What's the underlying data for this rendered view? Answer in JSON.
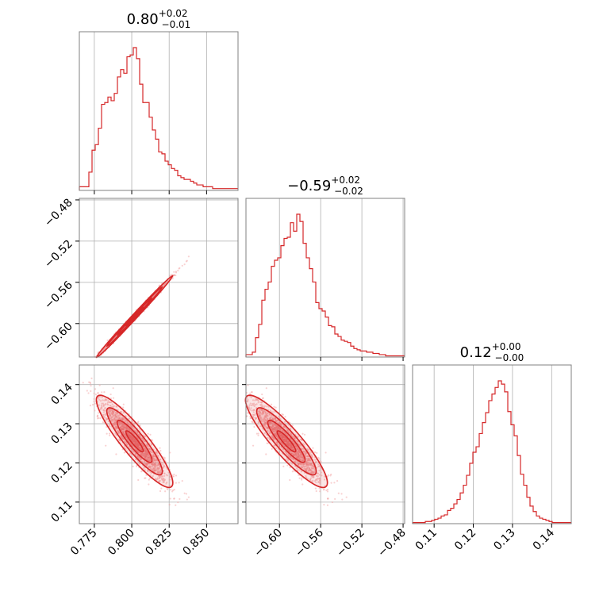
{
  "colors": {
    "primary": "#d62728",
    "grid": "#b0b0b0",
    "frame": "#808080",
    "light": "#f4a6a6"
  },
  "titles": [
    {
      "value": "0.80",
      "plus": "+0.02",
      "minus": "−0.01"
    },
    {
      "value": "−0.59",
      "plus": "+0.02",
      "minus": "−0.02"
    },
    {
      "value": "0.12",
      "plus": "+0.00",
      "minus": "−0.00"
    }
  ],
  "chart_data": {
    "type": "corner",
    "parameters": [
      {
        "index": 0,
        "range": [
          0.765,
          0.871
        ],
        "ticks": [
          0.775,
          0.8,
          0.825,
          0.85
        ],
        "tick_labels": [
          "0.775",
          "0.800",
          "0.825",
          "0.850"
        ]
      },
      {
        "index": 1,
        "range": [
          -0.6325,
          -0.4785
        ],
        "ticks": [
          -0.6,
          -0.56,
          -0.52,
          -0.48
        ],
        "tick_labels": [
          "−0.60",
          "−0.56",
          "−0.52",
          "−0.48"
        ]
      },
      {
        "index": 2,
        "range": [
          0.1045,
          0.145
        ],
        "ticks": [
          0.11,
          0.12,
          0.13,
          0.14
        ],
        "tick_labels": [
          "0.11",
          "0.12",
          "0.13",
          "0.14"
        ]
      }
    ],
    "histograms": [
      {
        "param": 0,
        "counts": [
          2,
          2,
          2,
          10,
          22,
          25,
          34,
          47,
          48,
          51,
          49,
          53,
          62,
          66,
          64,
          73,
          74,
          78,
          72,
          58,
          48,
          48,
          40,
          33,
          28,
          21,
          20,
          16,
          14,
          12,
          11,
          8,
          7,
          6,
          6,
          5,
          4,
          3,
          3,
          2,
          2,
          2,
          1,
          1,
          1,
          1,
          1,
          1,
          1,
          1
        ]
      },
      {
        "param": 1,
        "counts": [
          2,
          2,
          4,
          16,
          27,
          47,
          56,
          62,
          75,
          80,
          82,
          92,
          98,
          99,
          111,
          104,
          118,
          112,
          94,
          82,
          73,
          62,
          45,
          40,
          38,
          33,
          26,
          25,
          19,
          17,
          14,
          13,
          12,
          9,
          7,
          6,
          5,
          5,
          4,
          4,
          3,
          3,
          2,
          2,
          1,
          1,
          1,
          1,
          1,
          1
        ]
      },
      {
        "param": 2,
        "counts": [
          1,
          1,
          1,
          1,
          2,
          2,
          3,
          4,
          5,
          7,
          8,
          12,
          14,
          18,
          22,
          28,
          35,
          44,
          55,
          65,
          70,
          82,
          92,
          101,
          112,
          118,
          124,
          130,
          127,
          120,
          102,
          90,
          80,
          62,
          45,
          35,
          24,
          16,
          11,
          7,
          5,
          4,
          3,
          2,
          1,
          1,
          1,
          1,
          1,
          1
        ]
      }
    ],
    "scatter_panels": [
      {
        "x_param": 0,
        "y_param": 1,
        "relation": "strong positive",
        "density_contours": true
      },
      {
        "x_param": 0,
        "y_param": 2,
        "relation": "negative",
        "density_contours": true
      },
      {
        "x_param": 1,
        "y_param": 2,
        "relation": "negative",
        "density_contours": true
      }
    ]
  }
}
